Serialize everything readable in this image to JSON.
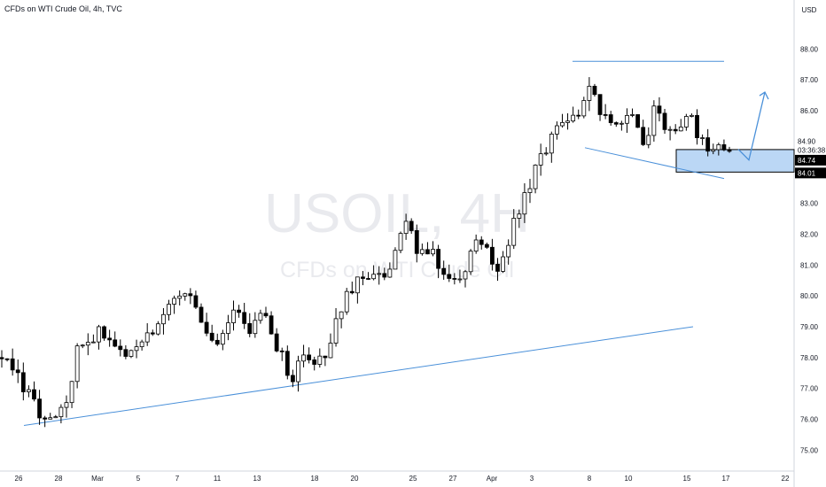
{
  "header": {
    "title": "CFDs on WTI Crude Oil, 4h, TVC"
  },
  "watermark": {
    "symbol": "USOIL, 4H",
    "description": "CFDs on WTI Crude Oil"
  },
  "price_scale": {
    "currency": "USD",
    "last_price": "84.90",
    "countdown": "03:36:38",
    "zone_top_tag": "84.74",
    "zone_bottom_tag": "84.01"
  },
  "colors": {
    "candle": "#000000",
    "trendline": "#4a90d9",
    "zone_fill": "#bbd7f5",
    "zone_border": "#000000",
    "tag_bg": "#000000",
    "tag_text": "#ffffff"
  },
  "chart_data": {
    "type": "candlestick",
    "title": "CFDs on WTI Crude Oil, 4h, TVC",
    "ylabel": "USD",
    "ylim": [
      74.4,
      88.6
    ],
    "grid": false,
    "y_ticks": [
      "75.00",
      "76.00",
      "77.00",
      "78.00",
      "79.00",
      "80.00",
      "81.00",
      "82.00",
      "83.00",
      "84.00",
      "85.00",
      "86.00",
      "87.00",
      "88.00"
    ],
    "x_ticks": [
      "26",
      "28",
      "Mar",
      "5",
      "7",
      "11",
      "13",
      "18",
      "20",
      "25",
      "27",
      "Apr",
      "3",
      "8",
      "10",
      "15",
      "17",
      "22"
    ],
    "close_path": [
      [
        0,
        78.0
      ],
      [
        3,
        76.6
      ],
      [
        4,
        75.9
      ],
      [
        6,
        76.5
      ],
      [
        7,
        78.2
      ],
      [
        9,
        78.8
      ],
      [
        11,
        78.1
      ],
      [
        13,
        78.6
      ],
      [
        15,
        79.3
      ],
      [
        17,
        80.3
      ],
      [
        19,
        79.0
      ],
      [
        20,
        78.4
      ],
      [
        22,
        79.7
      ],
      [
        23,
        78.8
      ],
      [
        24,
        79.7
      ],
      [
        26,
        78.2
      ],
      [
        27,
        77.2
      ],
      [
        28,
        78.1
      ],
      [
        30,
        77.8
      ],
      [
        31,
        78.8
      ],
      [
        32,
        80.0
      ],
      [
        34,
        80.7
      ],
      [
        35,
        80.9
      ],
      [
        36,
        80.6
      ],
      [
        37,
        81.9
      ],
      [
        38,
        82.6
      ],
      [
        39,
        81.2
      ],
      [
        40,
        81.6
      ],
      [
        41,
        80.6
      ],
      [
        42,
        80.6
      ],
      [
        43,
        80.7
      ],
      [
        44,
        81.6
      ],
      [
        45,
        81.8
      ],
      [
        46,
        80.8
      ],
      [
        47,
        81.2
      ],
      [
        48,
        82.5
      ],
      [
        49,
        83.3
      ],
      [
        50,
        84.3
      ],
      [
        51,
        84.7
      ],
      [
        52,
        85.6
      ],
      [
        53,
        85.5
      ],
      [
        54,
        85.9
      ],
      [
        55,
        87.0
      ],
      [
        56,
        86.0
      ],
      [
        57,
        85.4
      ],
      [
        58,
        85.8
      ],
      [
        59,
        86.1
      ],
      [
        60,
        84.7
      ],
      [
        61,
        86.1
      ],
      [
        62,
        85.4
      ],
      [
        63,
        85.2
      ],
      [
        64,
        86.0
      ],
      [
        65,
        85.3
      ],
      [
        66,
        84.7
      ],
      [
        67,
        85.1
      ],
      [
        68,
        84.6
      ]
    ],
    "levels": {
      "resistance": 87.55,
      "zone": [
        84.01,
        84.74
      ],
      "last": 84.9
    },
    "trendlines": [
      {
        "from": [
          "26",
          75.8
        ],
        "to": [
          "15",
          79.0
        ]
      },
      {
        "from": [
          "Apr",
          87.6
        ],
        "to": [
          "17",
          87.6
        ]
      },
      {
        "from": [
          "8",
          84.8
        ],
        "to": [
          "17",
          83.8
        ]
      }
    ],
    "projection": {
      "from": 84.75,
      "dip": 84.4,
      "target": 86.6
    }
  }
}
